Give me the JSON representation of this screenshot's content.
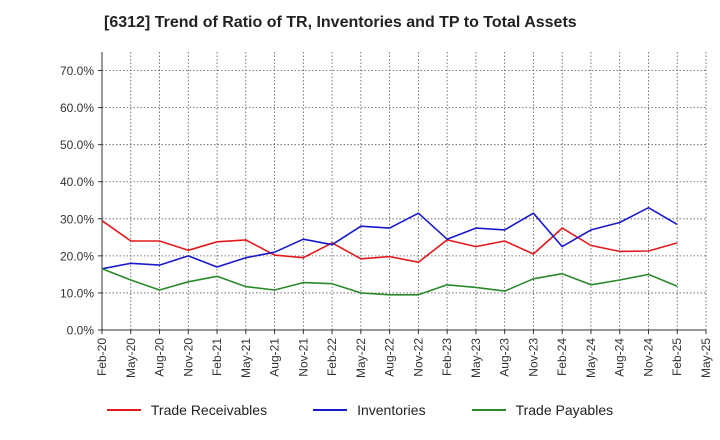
{
  "chart_data": {
    "type": "line",
    "title": "[6312]  Trend of Ratio of TR, Inventories and TP to Total Assets",
    "xlabel": "",
    "ylabel": "",
    "ylim": [
      0,
      75
    ],
    "yticks": [
      "0.0%",
      "10.0%",
      "20.0%",
      "30.0%",
      "40.0%",
      "50.0%",
      "60.0%",
      "70.0%"
    ],
    "ytick_values": [
      0,
      10,
      20,
      30,
      40,
      50,
      60,
      70
    ],
    "x_tick_labels": [
      "Feb-20",
      "May-20",
      "Aug-20",
      "Nov-20",
      "Feb-21",
      "May-21",
      "Aug-21",
      "Nov-21",
      "Feb-22",
      "May-22",
      "Aug-22",
      "Nov-22",
      "Feb-23",
      "May-23",
      "Aug-23",
      "Nov-23",
      "Feb-24",
      "May-24",
      "Aug-24",
      "Nov-24",
      "Feb-25",
      "May-25"
    ],
    "x": [
      "Feb-20",
      "May-20",
      "Aug-20",
      "Nov-20",
      "Feb-21",
      "May-21",
      "Aug-21",
      "Nov-21",
      "Feb-22",
      "May-22",
      "Aug-22",
      "Nov-22",
      "Feb-23",
      "May-23",
      "Aug-23",
      "Nov-23",
      "Feb-24",
      "May-24",
      "Aug-24",
      "Nov-24",
      "Feb-25"
    ],
    "grid": true,
    "legend_position": "bottom",
    "series": [
      {
        "name": "Trade Receivables",
        "color": "#e31a1c",
        "values": [
          29.5,
          24.0,
          24.0,
          21.5,
          23.8,
          24.3,
          20.2,
          19.5,
          23.5,
          19.2,
          19.8,
          18.3,
          24.3,
          22.5,
          24.0,
          20.5,
          27.5,
          22.8,
          21.2,
          21.3,
          23.5
        ]
      },
      {
        "name": "Inventories",
        "color": "#1a1acc",
        "values": [
          16.5,
          18.0,
          17.5,
          20.0,
          17.0,
          19.5,
          21.0,
          24.5,
          23.0,
          28.0,
          27.5,
          31.5,
          24.5,
          27.5,
          27.0,
          31.5,
          22.5,
          27.0,
          29.0,
          33.0,
          28.5
        ]
      },
      {
        "name": "Trade Payables",
        "color": "#2a8a2a",
        "values": [
          16.5,
          13.5,
          10.8,
          13.0,
          14.5,
          11.7,
          10.8,
          12.8,
          12.5,
          10.0,
          9.5,
          9.5,
          12.2,
          11.5,
          10.5,
          13.8,
          15.2,
          12.2,
          13.5,
          15.0,
          11.8
        ]
      }
    ]
  }
}
